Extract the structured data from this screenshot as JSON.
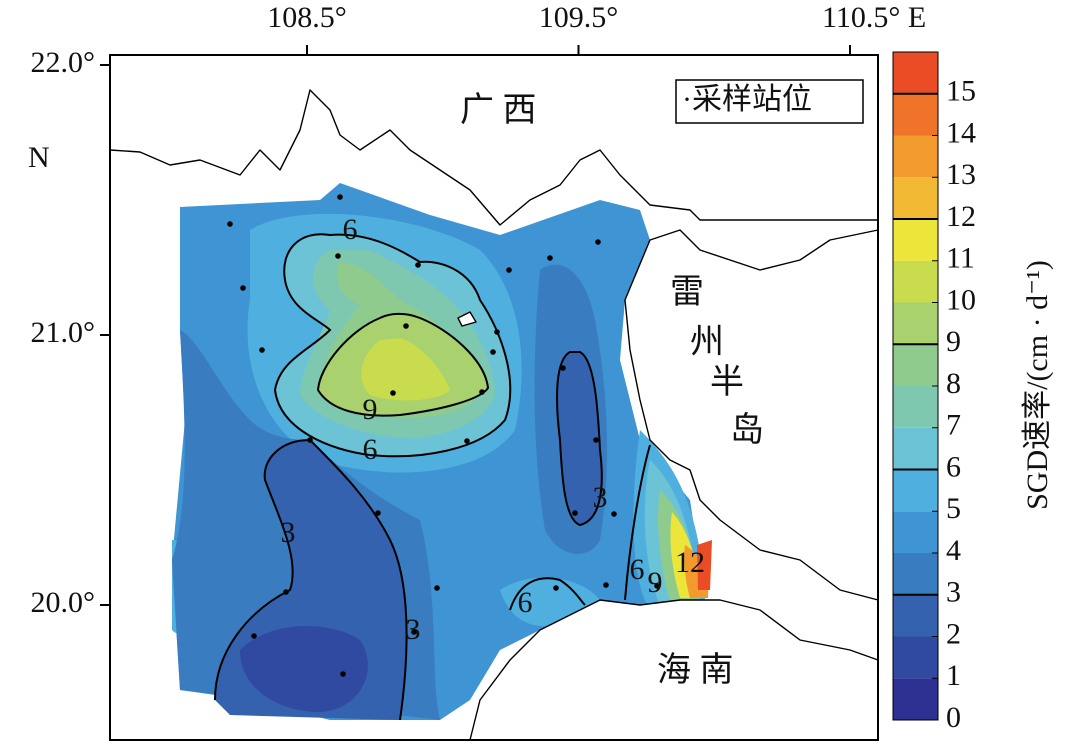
{
  "map": {
    "lon_ticks": [
      {
        "value": 108.5,
        "label": "108.5°"
      },
      {
        "value": 109.5,
        "label": "109.5°"
      },
      {
        "value": 110.5,
        "label": "110.5° E"
      }
    ],
    "lat_ticks": [
      {
        "value": 22.0,
        "label": "22.0°"
      },
      {
        "value": 21.0,
        "label": "21.0°"
      },
      {
        "value": 20.0,
        "label": "20.0°"
      }
    ],
    "lat_unit": "N",
    "places": [
      "广 西",
      "雷",
      "州",
      "半",
      "岛",
      "海 南"
    ],
    "legend": "·采样站位",
    "colorbar": {
      "label": "SGD速率/(cm · d⁻¹)",
      "lim": [
        0,
        16
      ],
      "ticks": [
        0,
        1,
        2,
        3,
        4,
        5,
        6,
        7,
        8,
        9,
        10,
        11,
        12,
        13,
        14,
        15
      ],
      "colors": [
        "#2e3192",
        "#2f4aa0",
        "#3462ae",
        "#3a7cc0",
        "#3f95d3",
        "#4fb0e0",
        "#6cc3d6",
        "#7ec8b0",
        "#8ecb8c",
        "#a9d16e",
        "#c9dc4e",
        "#ede63a",
        "#f1b833",
        "#f29a2e",
        "#ef7429",
        "#ea4c26"
      ],
      "contour_levels": [
        3,
        6,
        9,
        12,
        15
      ]
    },
    "contour_labels": [
      6,
      9,
      6,
      3,
      3,
      3,
      6,
      6,
      9,
      12
    ]
  }
}
